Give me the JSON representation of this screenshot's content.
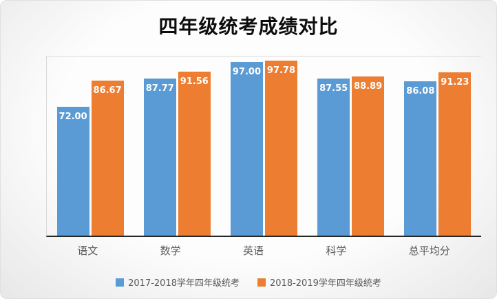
{
  "chart_data": {
    "type": "bar",
    "title": "四年级统考成绩对比",
    "categories": [
      "语文",
      "数学",
      "英语",
      "科学",
      "总平均分"
    ],
    "series": [
      {
        "name": "2017-2018学年四年级统考",
        "color": "#5B9BD5",
        "values": [
          72.0,
          87.77,
          97.0,
          87.55,
          86.08
        ]
      },
      {
        "name": "2018-2019学年四年级统考",
        "color": "#ED7D31",
        "values": [
          86.67,
          91.56,
          97.78,
          88.89,
          91.23
        ]
      }
    ],
    "ylim": [
      0,
      100
    ],
    "grid": false,
    "legend_position": "bottom",
    "data_labels": true,
    "label_format": "2dp",
    "axis_line_color": "#262626",
    "text_color": "#595959"
  }
}
